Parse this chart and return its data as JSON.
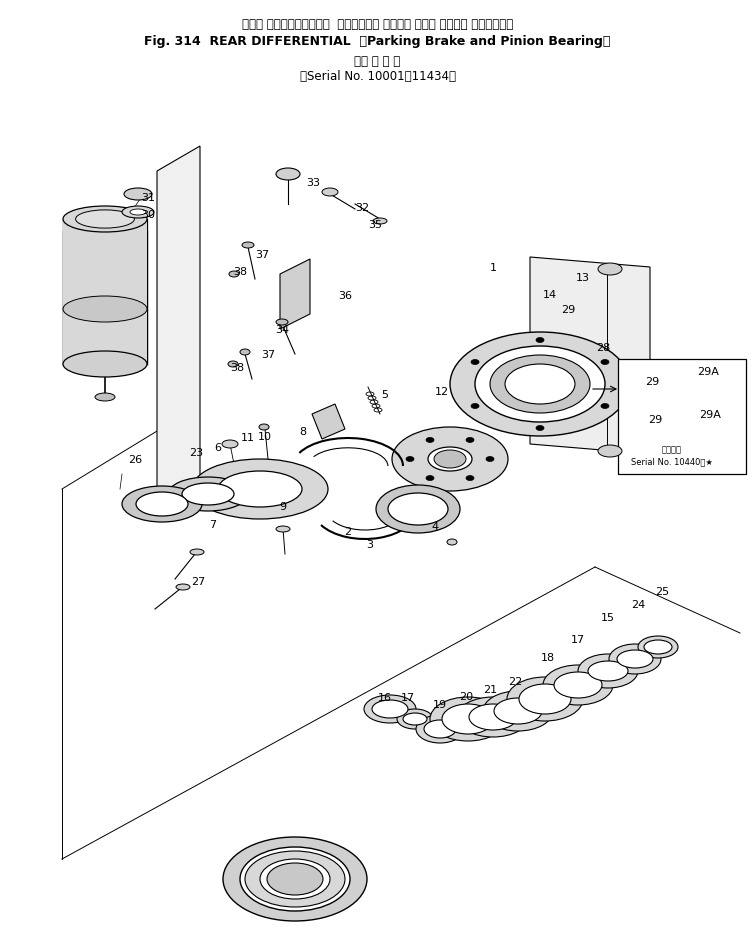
{
  "title_line1": "リヤー ディファレンシャル  （パーキング ブレーキ および ピニオン ベアリング）",
  "title_line2_a": "Fig. 314  REAR DIFFERENTIAL  ",
  "title_line2_b": "（Parking Brake and Pinion Bearing）",
  "title_line3": "（適 用 号 機",
  "title_line4": "（Serial No. 10001～11434）",
  "bg_color": "#ffffff",
  "fg_color": "#000000",
  "small_box_serial1": "適用号機",
  "small_box_serial2": "Serial No. 10440～★",
  "figsize": [
    7.55,
    9.53
  ],
  "dpi": 100
}
